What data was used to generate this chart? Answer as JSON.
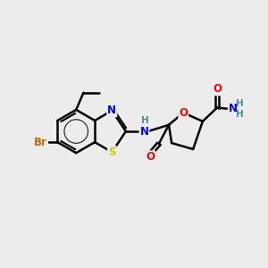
{
  "background_color": "#ececec",
  "bond_color": "#000000",
  "bond_width": 1.8,
  "atom_colors": {
    "N": "#0000ff",
    "O": "#ff0000",
    "S": "#cccc00",
    "Br": "#cc6600",
    "C": "#000000",
    "H": "#4a9090"
  },
  "font_size": 8.5,
  "fig_width": 3.0,
  "fig_height": 3.0,
  "dpi": 100
}
